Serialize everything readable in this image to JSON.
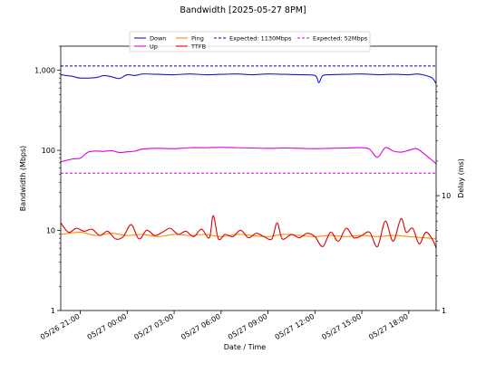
{
  "chart_data": {
    "type": "line",
    "title": "Bandwidth [2025-05-27 8PM]",
    "xlabel": "Date / Time",
    "ylabel_left": "Bandwidth (Mbps)",
    "ylabel_right": "Delay (ms)",
    "y_left_scale": "log",
    "y_left_range": [
      1,
      2000
    ],
    "y_left_ticks": [
      {
        "v": 1,
        "label": "1"
      },
      {
        "v": 10,
        "label": "10"
      },
      {
        "v": 100,
        "label": "100"
      },
      {
        "v": 1000,
        "label": "1,000"
      }
    ],
    "y_right_scale": "log",
    "y_right_range": [
      1,
      200
    ],
    "y_right_ticks": [
      {
        "v": 1,
        "label": "1"
      },
      {
        "v": 10,
        "label": "10"
      }
    ],
    "x_range": [
      "2025-05-26 19:45",
      "2025-05-27 19:45"
    ],
    "x_ticks": [
      {
        "t": "2025-05-26 21:00",
        "label": "05/26 21:00"
      },
      {
        "t": "2025-05-27 00:00",
        "label": "05/27 00:00"
      },
      {
        "t": "2025-05-27 03:00",
        "label": "05/27 03:00"
      },
      {
        "t": "2025-05-27 06:00",
        "label": "05/27 06:00"
      },
      {
        "t": "2025-05-27 09:00",
        "label": "05/27 09:00"
      },
      {
        "t": "2025-05-27 12:00",
        "label": "05/27 12:00"
      },
      {
        "t": "2025-05-27 15:00",
        "label": "05/27 15:00"
      },
      {
        "t": "2025-05-27 18:00",
        "label": "05/27 18:00"
      }
    ],
    "legend_position": "top-center",
    "reference_lines": [
      {
        "name": "Expected: 1130Mbps",
        "value": 1130,
        "axis": "left",
        "color": "#0000cc",
        "dash": true
      },
      {
        "name": "Expected: 52Mbps",
        "value": 52,
        "axis": "left",
        "color": "#dd00dd",
        "dash": true
      }
    ],
    "series": [
      {
        "name": "Down",
        "axis": "left",
        "color": "#1a1acc",
        "points": [
          [
            "2025-05-26 19:45",
            880
          ],
          [
            "2025-05-26 20:30",
            840
          ],
          [
            "2025-05-26 21:00",
            800
          ],
          [
            "2025-05-26 22:00",
            810
          ],
          [
            "2025-05-26 22:30",
            860
          ],
          [
            "2025-05-26 23:00",
            830
          ],
          [
            "2025-05-26 23:30",
            790
          ],
          [
            "2025-05-27 00:00",
            880
          ],
          [
            "2025-05-27 00:30",
            860
          ],
          [
            "2025-05-27 01:00",
            900
          ],
          [
            "2025-05-27 02:00",
            890
          ],
          [
            "2025-05-27 03:00",
            880
          ],
          [
            "2025-05-27 04:00",
            900
          ],
          [
            "2025-05-27 05:00",
            880
          ],
          [
            "2025-05-27 06:00",
            890
          ],
          [
            "2025-05-27 07:00",
            900
          ],
          [
            "2025-05-27 08:00",
            880
          ],
          [
            "2025-05-27 09:00",
            900
          ],
          [
            "2025-05-27 10:00",
            890
          ],
          [
            "2025-05-27 11:00",
            880
          ],
          [
            "2025-05-27 12:00",
            860
          ],
          [
            "2025-05-27 12:15",
            700
          ],
          [
            "2025-05-27 12:30",
            860
          ],
          [
            "2025-05-27 13:00",
            880
          ],
          [
            "2025-05-27 14:00",
            890
          ],
          [
            "2025-05-27 15:00",
            900
          ],
          [
            "2025-05-27 16:00",
            880
          ],
          [
            "2025-05-27 17:00",
            890
          ],
          [
            "2025-05-27 18:00",
            880
          ],
          [
            "2025-05-27 18:30",
            900
          ],
          [
            "2025-05-27 19:00",
            870
          ],
          [
            "2025-05-27 19:30",
            800
          ],
          [
            "2025-05-27 19:45",
            680
          ]
        ]
      },
      {
        "name": "Up",
        "axis": "left",
        "color": "#dd00dd",
        "points": [
          [
            "2025-05-26 19:45",
            72
          ],
          [
            "2025-05-26 20:30",
            78
          ],
          [
            "2025-05-26 21:00",
            80
          ],
          [
            "2025-05-26 21:30",
            95
          ],
          [
            "2025-05-26 22:00",
            98
          ],
          [
            "2025-05-26 22:30",
            97
          ],
          [
            "2025-05-26 23:00",
            99
          ],
          [
            "2025-05-26 23:30",
            94
          ],
          [
            "2025-05-27 00:00",
            96
          ],
          [
            "2025-05-27 00:30",
            98
          ],
          [
            "2025-05-27 01:00",
            104
          ],
          [
            "2025-05-27 02:00",
            106
          ],
          [
            "2025-05-27 03:00",
            105
          ],
          [
            "2025-05-27 04:00",
            108
          ],
          [
            "2025-05-27 05:00",
            108
          ],
          [
            "2025-05-27 06:00",
            109
          ],
          [
            "2025-05-27 07:00",
            108
          ],
          [
            "2025-05-27 08:00",
            107
          ],
          [
            "2025-05-27 09:00",
            106
          ],
          [
            "2025-05-27 10:00",
            107
          ],
          [
            "2025-05-27 11:00",
            106
          ],
          [
            "2025-05-27 12:00",
            105
          ],
          [
            "2025-05-27 13:00",
            106
          ],
          [
            "2025-05-27 14:00",
            107
          ],
          [
            "2025-05-27 15:00",
            108
          ],
          [
            "2025-05-27 15:30",
            103
          ],
          [
            "2025-05-27 16:00",
            82
          ],
          [
            "2025-05-27 16:30",
            108
          ],
          [
            "2025-05-27 17:00",
            98
          ],
          [
            "2025-05-27 17:30",
            95
          ],
          [
            "2025-05-27 18:00",
            100
          ],
          [
            "2025-05-27 18:30",
            105
          ],
          [
            "2025-05-27 19:00",
            90
          ],
          [
            "2025-05-27 19:30",
            75
          ],
          [
            "2025-05-27 19:45",
            68
          ]
        ]
      },
      {
        "name": "Ping",
        "axis": "right",
        "color": "#ff8c00",
        "points": [
          [
            "2025-05-26 19:45",
            4.6
          ],
          [
            "2025-05-26 21:00",
            4.8
          ],
          [
            "2025-05-26 22:00",
            4.5
          ],
          [
            "2025-05-26 23:00",
            4.7
          ],
          [
            "2025-05-27 00:00",
            4.5
          ],
          [
            "2025-05-27 01:00",
            4.6
          ],
          [
            "2025-05-27 02:00",
            4.4
          ],
          [
            "2025-05-27 03:00",
            4.6
          ],
          [
            "2025-05-27 04:00",
            4.5
          ],
          [
            "2025-05-27 05:00",
            4.6
          ],
          [
            "2025-05-27 06:00",
            4.4
          ],
          [
            "2025-05-27 07:00",
            4.6
          ],
          [
            "2025-05-27 08:00",
            4.5
          ],
          [
            "2025-05-27 09:00",
            4.4
          ],
          [
            "2025-05-27 10:00",
            4.6
          ],
          [
            "2025-05-27 11:00",
            4.5
          ],
          [
            "2025-05-27 12:00",
            4.4
          ],
          [
            "2025-05-27 13:00",
            4.5
          ],
          [
            "2025-05-27 14:00",
            4.4
          ],
          [
            "2025-05-27 15:00",
            4.5
          ],
          [
            "2025-05-27 16:00",
            4.4
          ],
          [
            "2025-05-27 17:00",
            4.5
          ],
          [
            "2025-05-27 18:00",
            4.4
          ],
          [
            "2025-05-27 19:00",
            4.3
          ],
          [
            "2025-05-27 19:45",
            4.2
          ]
        ]
      },
      {
        "name": "TTFB",
        "axis": "right",
        "color": "#dd0000",
        "points": [
          [
            "2025-05-26 19:45",
            5.8
          ],
          [
            "2025-05-26 20:15",
            4.8
          ],
          [
            "2025-05-26 20:45",
            5.2
          ],
          [
            "2025-05-26 21:15",
            4.9
          ],
          [
            "2025-05-26 21:45",
            5.1
          ],
          [
            "2025-05-26 22:15",
            4.5
          ],
          [
            "2025-05-26 22:45",
            4.9
          ],
          [
            "2025-05-26 23:15",
            4.2
          ],
          [
            "2025-05-26 23:45",
            4.4
          ],
          [
            "2025-05-27 00:15",
            5.6
          ],
          [
            "2025-05-27 00:45",
            4.2
          ],
          [
            "2025-05-27 01:15",
            5.0
          ],
          [
            "2025-05-27 01:45",
            4.5
          ],
          [
            "2025-05-27 02:15",
            4.8
          ],
          [
            "2025-05-27 02:45",
            5.2
          ],
          [
            "2025-05-27 03:15",
            4.6
          ],
          [
            "2025-05-27 03:45",
            4.9
          ],
          [
            "2025-05-27 04:15",
            4.4
          ],
          [
            "2025-05-27 04:45",
            5.1
          ],
          [
            "2025-05-27 05:15",
            4.3
          ],
          [
            "2025-05-27 05:30",
            6.7
          ],
          [
            "2025-05-27 05:50",
            4.2
          ],
          [
            "2025-05-27 06:15",
            4.6
          ],
          [
            "2025-05-27 06:45",
            4.4
          ],
          [
            "2025-05-27 07:15",
            5.0
          ],
          [
            "2025-05-27 07:45",
            4.3
          ],
          [
            "2025-05-27 08:15",
            4.7
          ],
          [
            "2025-05-27 08:45",
            4.4
          ],
          [
            "2025-05-27 09:15",
            4.2
          ],
          [
            "2025-05-27 09:35",
            5.8
          ],
          [
            "2025-05-27 09:55",
            4.2
          ],
          [
            "2025-05-27 10:30",
            4.6
          ],
          [
            "2025-05-27 11:00",
            4.3
          ],
          [
            "2025-05-27 11:30",
            4.7
          ],
          [
            "2025-05-27 12:00",
            4.4
          ],
          [
            "2025-05-27 12:30",
            3.6
          ],
          [
            "2025-05-27 13:00",
            4.8
          ],
          [
            "2025-05-27 13:30",
            4.0
          ],
          [
            "2025-05-27 14:00",
            5.2
          ],
          [
            "2025-05-27 14:30",
            4.3
          ],
          [
            "2025-05-27 15:00",
            4.5
          ],
          [
            "2025-05-27 15:30",
            4.8
          ],
          [
            "2025-05-27 16:00",
            3.6
          ],
          [
            "2025-05-27 16:30",
            6.0
          ],
          [
            "2025-05-27 17:00",
            4.0
          ],
          [
            "2025-05-27 17:30",
            6.3
          ],
          [
            "2025-05-27 17:50",
            4.8
          ],
          [
            "2025-05-27 18:15",
            5.2
          ],
          [
            "2025-05-27 18:40",
            3.8
          ],
          [
            "2025-05-27 19:05",
            4.8
          ],
          [
            "2025-05-27 19:30",
            4.2
          ],
          [
            "2025-05-27 19:45",
            3.5
          ]
        ]
      }
    ]
  }
}
